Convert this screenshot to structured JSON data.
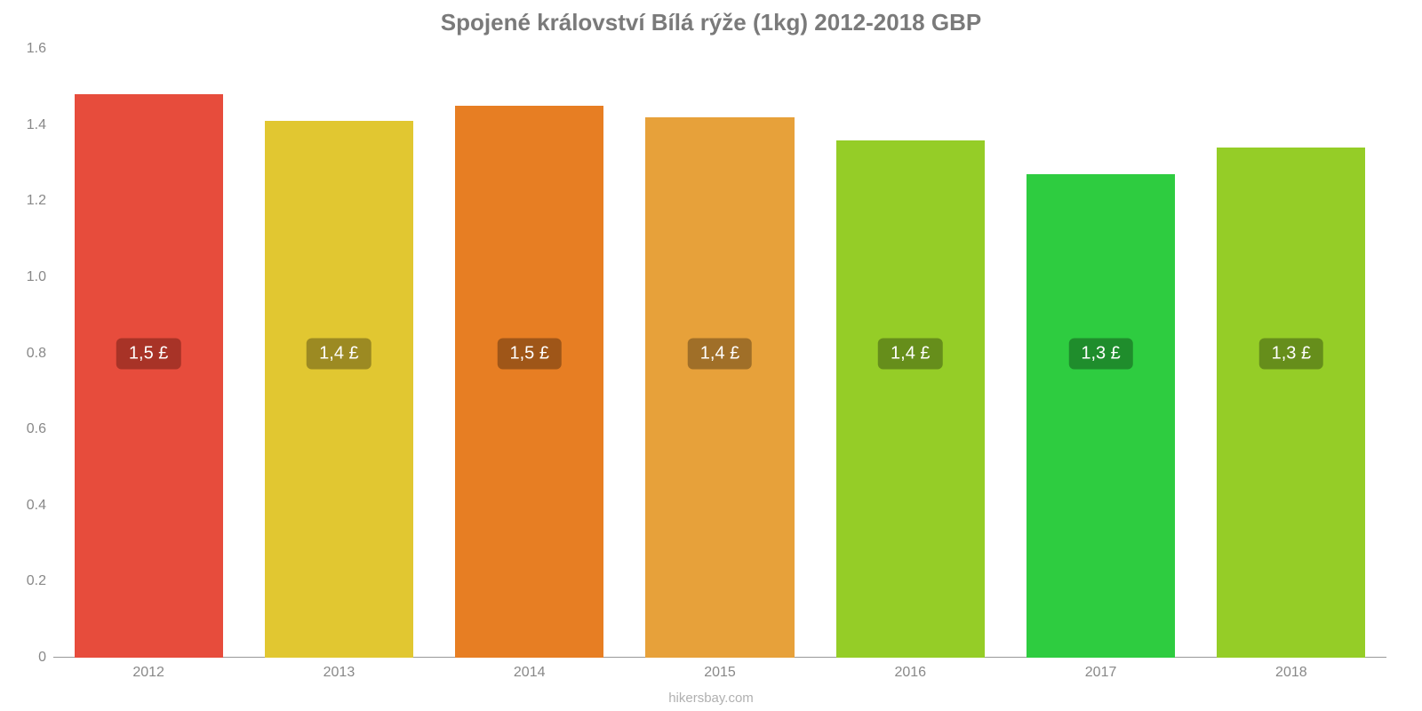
{
  "chart": {
    "type": "bar",
    "title": "Spojené království Bílá rýže (1kg) 2012-2018 GBP",
    "title_color": "#7a7a7a",
    "title_fontsize": 26,
    "title_fontweight": "bold",
    "background_color": "#ffffff",
    "categories": [
      "2012",
      "2013",
      "2014",
      "2015",
      "2016",
      "2017",
      "2018"
    ],
    "values": [
      1.48,
      1.41,
      1.45,
      1.42,
      1.36,
      1.27,
      1.34
    ],
    "value_labels": [
      "1,5 £",
      "1,4 £",
      "1,5 £",
      "1,4 £",
      "1,4 £",
      "1,3 £",
      "1,3 £"
    ],
    "bar_colors": [
      "#e74c3c",
      "#e1c731",
      "#e77e23",
      "#e7a13a",
      "#95cd27",
      "#2ecc40",
      "#95cd27"
    ],
    "label_bg_colors": [
      "#a83327",
      "#9c8a22",
      "#9f5618",
      "#a06f28",
      "#668e1b",
      "#1f8d2c",
      "#668e1b"
    ],
    "label_fontsize": 20,
    "label_text_color": "#ffffff",
    "label_y_value": 0.8,
    "ylim": [
      0,
      1.6
    ],
    "y_ticks": [
      0,
      0.2,
      0.4,
      0.6,
      0.8,
      1.0,
      1.2,
      1.4,
      1.6
    ],
    "y_tick_labels": [
      "0",
      "0.2",
      "0.4",
      "0.6",
      "0.8",
      "1.0",
      "1.2",
      "1.4",
      "1.6"
    ],
    "axis_label_color": "#888888",
    "axis_label_fontsize": 16,
    "baseline_color": "#999999",
    "bar_width_ratio": 0.78,
    "footer": "hikersbay.com",
    "footer_color": "#b0b0b0",
    "footer_fontsize": 15
  }
}
